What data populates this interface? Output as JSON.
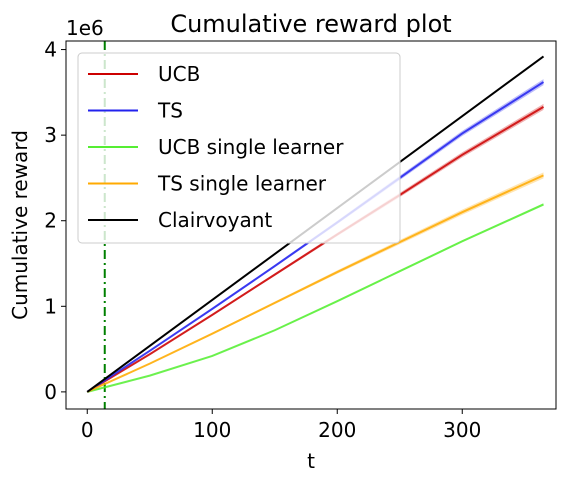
{
  "chart_data": {
    "type": "line",
    "title": "Cumulative reward plot",
    "xlabel": "t",
    "ylabel": "Cumulative reward",
    "y_scale_label": "1e6",
    "xlim": [
      -17,
      375
    ],
    "ylim": [
      -0.2,
      4.1
    ],
    "xticks": [
      0,
      100,
      200,
      300
    ],
    "yticks": [
      0,
      1,
      2,
      3,
      4
    ],
    "grid": false,
    "legend_position": "top-left",
    "vline": {
      "x": 14,
      "color": "#008000",
      "style": "dash-dot"
    },
    "series": [
      {
        "name": "UCB",
        "color": "#cc0000",
        "band": 0.035,
        "x": [
          0,
          50,
          100,
          150,
          200,
          250,
          300,
          365
        ],
        "y": [
          0,
          0.44,
          0.9,
          1.37,
          1.84,
          2.3,
          2.77,
          3.33
        ]
      },
      {
        "name": "TS",
        "color": "#2222ee",
        "band": 0.035,
        "x": [
          0,
          50,
          100,
          150,
          200,
          250,
          300,
          365
        ],
        "y": [
          0,
          0.48,
          0.97,
          1.47,
          1.98,
          2.5,
          3.02,
          3.62
        ]
      },
      {
        "name": "UCB single learner",
        "color": "#55ee33",
        "band": 0.015,
        "x": [
          0,
          50,
          100,
          150,
          200,
          250,
          300,
          365
        ],
        "y": [
          0,
          0.19,
          0.42,
          0.72,
          1.06,
          1.41,
          1.76,
          2.19
        ]
      },
      {
        "name": "TS single learner",
        "color": "#ffaa00",
        "band": 0.035,
        "x": [
          0,
          50,
          100,
          150,
          200,
          250,
          300,
          365
        ],
        "y": [
          0,
          0.33,
          0.68,
          1.04,
          1.4,
          1.75,
          2.1,
          2.53
        ]
      },
      {
        "name": "Clairvoyant",
        "color": "#000000",
        "band": 0,
        "x": [
          0,
          365
        ],
        "y": [
          0,
          3.92
        ]
      }
    ]
  }
}
